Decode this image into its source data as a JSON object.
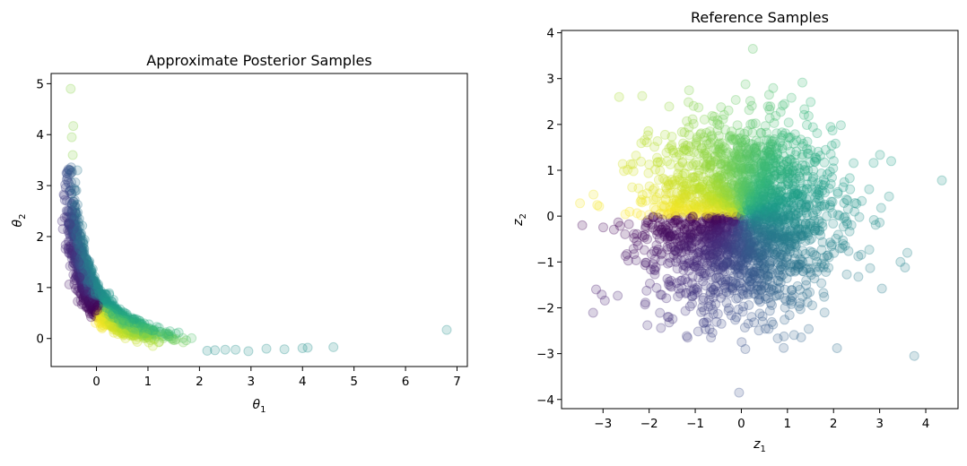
{
  "chart_data": [
    {
      "type": "scatter",
      "title": "Approximate Posterior Samples",
      "xlabel": "θ",
      "xlabel_sub": "1",
      "ylabel": "θ",
      "ylabel_sub": "2",
      "xlim": [
        -0.88,
        7.2
      ],
      "ylim": [
        -0.55,
        5.2
      ],
      "xticks": [
        0,
        1,
        2,
        3,
        4,
        5,
        6,
        7
      ],
      "yticks": [
        0,
        1,
        2,
        3,
        4,
        5
      ],
      "colormap": "viridis",
      "alpha": 0.2,
      "description": "Curved banana-shaped cloud: dense band along θ2 ≈ 0.9/(θ1+0.8) - 0.38; yellow/green on upper-right edge, purple on lower-left edge; sparse teal tail along θ2 ≈ -0.2 out to θ1 ≈ 4.6",
      "outliers": [
        [
          6.8,
          0.17
        ],
        [
          4.6,
          -0.17
        ],
        [
          4.1,
          -0.18
        ],
        [
          4.0,
          -0.19
        ],
        [
          3.65,
          -0.21
        ],
        [
          3.3,
          -0.2
        ],
        [
          2.95,
          -0.25
        ],
        [
          2.7,
          -0.22
        ],
        [
          2.5,
          -0.22
        ],
        [
          2.3,
          -0.23
        ],
        [
          2.15,
          -0.24
        ],
        [
          -0.5,
          4.9
        ],
        [
          -0.45,
          4.17
        ],
        [
          -0.48,
          3.95
        ],
        [
          -0.46,
          3.6
        ]
      ]
    },
    {
      "type": "scatter",
      "title": "Reference Samples",
      "xlabel": "z",
      "xlabel_sub": "1",
      "ylabel": "z",
      "ylabel_sub": "2",
      "xlim": [
        -3.9,
        4.7
      ],
      "ylim": [
        -4.2,
        4.05
      ],
      "xticks": [
        -3,
        -2,
        -1,
        0,
        1,
        2,
        3,
        4
      ],
      "yticks": [
        -4,
        -3,
        -2,
        -1,
        0,
        1,
        2,
        3,
        4
      ],
      "colormap": "viridis",
      "alpha": 0.2,
      "description": "Standard bivariate normal cloud colored by polar angle: purple lower-left, teal right, green top, yellow upper-left; sharp color seam along negative z1 axis",
      "outliers": [
        [
          0.25,
          3.65
        ],
        [
          4.35,
          0.78
        ],
        [
          3.75,
          -3.05
        ],
        [
          -0.05,
          -3.85
        ],
        [
          -3.5,
          0.28
        ],
        [
          -3.45,
          -0.2
        ],
        [
          -3.15,
          -1.6
        ],
        [
          -2.65,
          2.6
        ],
        [
          -2.15,
          2.62
        ],
        [
          3.25,
          1.2
        ],
        [
          3.6,
          -0.8
        ],
        [
          3.45,
          -1.0
        ],
        [
          3.55,
          -1.12
        ],
        [
          3.05,
          -1.58
        ]
      ]
    }
  ]
}
